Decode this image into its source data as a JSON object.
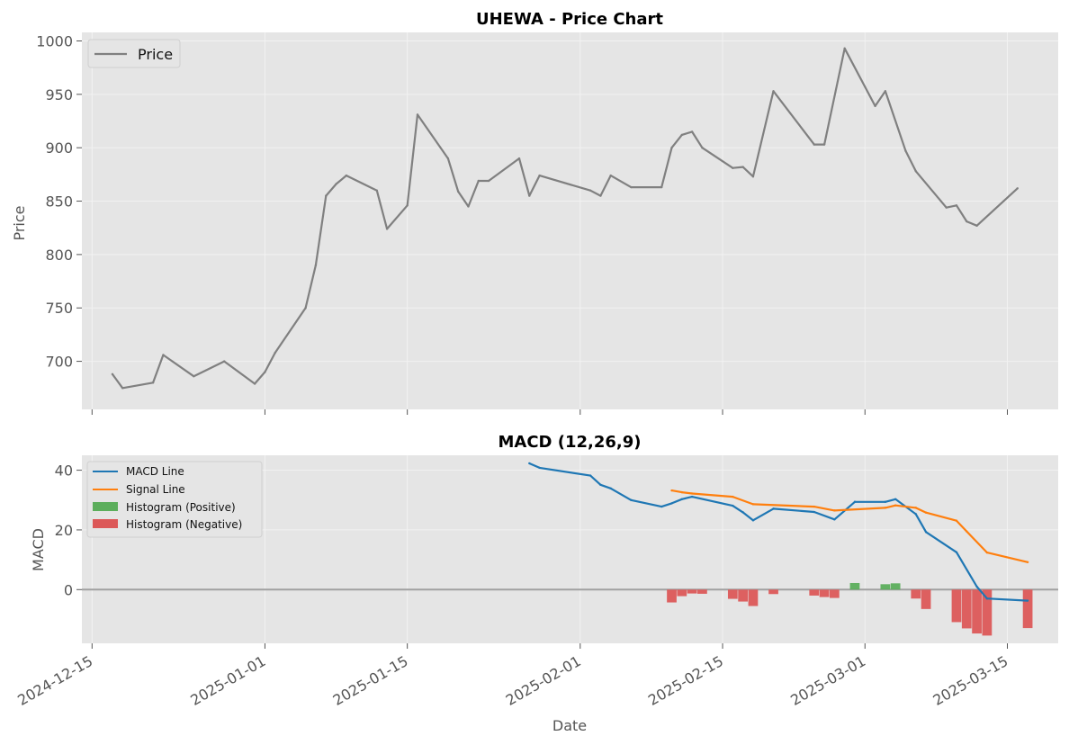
{
  "chart_data": [
    {
      "type": "line",
      "title": "UHEWA - Price Chart",
      "xlabel": "",
      "ylabel": "Price",
      "ylim": [
        655,
        1008
      ],
      "yticks": [
        700,
        750,
        800,
        850,
        900,
        950,
        1000
      ],
      "ytick_labels": [
        "700",
        "750",
        "800",
        "850",
        "900",
        "950",
        "1000"
      ],
      "xlim": [
        "2024-12-14",
        "2025-03-20"
      ],
      "grid": true,
      "legend_position": "top-left",
      "series": [
        {
          "name": "Price",
          "color": "#808080",
          "x": [
            "2024-12-17",
            "2024-12-18",
            "2024-12-21",
            "2024-12-22",
            "2024-12-25",
            "2024-12-28",
            "2024-12-31",
            "2025-01-01",
            "2025-01-02",
            "2025-01-05",
            "2025-01-06",
            "2025-01-07",
            "2025-01-08",
            "2025-01-09",
            "2025-01-12",
            "2025-01-13",
            "2025-01-15",
            "2025-01-16",
            "2025-01-19",
            "2025-01-20",
            "2025-01-21",
            "2025-01-22",
            "2025-01-23",
            "2025-01-26",
            "2025-01-27",
            "2025-01-28",
            "2025-02-02",
            "2025-02-03",
            "2025-02-04",
            "2025-02-06",
            "2025-02-09",
            "2025-02-10",
            "2025-02-11",
            "2025-02-12",
            "2025-02-13",
            "2025-02-16",
            "2025-02-17",
            "2025-02-18",
            "2025-02-20",
            "2025-02-24",
            "2025-02-25",
            "2025-02-27",
            "2025-03-02",
            "2025-03-03",
            "2025-03-05",
            "2025-03-06",
            "2025-03-09",
            "2025-03-10",
            "2025-03-11",
            "2025-03-12",
            "2025-03-16"
          ],
          "values": [
            688,
            675,
            680,
            706,
            686,
            700,
            679,
            690,
            708,
            750,
            790,
            855,
            866,
            874,
            860,
            824,
            846,
            931,
            890,
            859,
            845,
            869,
            869,
            890,
            855,
            874,
            860,
            855,
            874,
            863,
            863,
            900,
            912,
            915,
            900,
            881,
            882,
            873,
            953,
            903,
            903,
            993,
            939,
            953,
            897,
            878,
            844,
            846,
            831,
            827,
            862
          ]
        }
      ]
    },
    {
      "type": "line",
      "title": "MACD (12,26,9)",
      "xlabel": "Date",
      "ylabel": "MACD",
      "ylim": [
        -18,
        45
      ],
      "yticks": [
        0,
        20,
        40
      ],
      "ytick_labels": [
        "0",
        "20",
        "40"
      ],
      "xlim": [
        "2024-12-14",
        "2025-03-20"
      ],
      "grid": true,
      "legend_position": "top-left",
      "zero_line": 0,
      "series": [
        {
          "name": "MACD Line",
          "color": "#1f77b4",
          "x": [
            "2025-01-27",
            "2025-01-28",
            "2025-02-02",
            "2025-02-03",
            "2025-02-04",
            "2025-02-06",
            "2025-02-09",
            "2025-02-10",
            "2025-02-11",
            "2025-02-12",
            "2025-02-16",
            "2025-02-17",
            "2025-02-18",
            "2025-02-20",
            "2025-02-24",
            "2025-02-26",
            "2025-02-28",
            "2025-03-03",
            "2025-03-04",
            "2025-03-06",
            "2025-03-07",
            "2025-03-10",
            "2025-03-12",
            "2025-03-13",
            "2025-03-17"
          ],
          "values": [
            42.3,
            40.8,
            38.2,
            35.1,
            33.9,
            30.0,
            27.8,
            28.9,
            30.3,
            31.1,
            28.1,
            25.9,
            23.2,
            27.1,
            26.0,
            23.5,
            29.4,
            29.4,
            30.3,
            25.3,
            19.3,
            12.5,
            1.0,
            -3.0,
            -3.7
          ]
        },
        {
          "name": "Signal Line",
          "color": "#ff7f0e",
          "x": [
            "2025-02-10",
            "2025-02-11",
            "2025-02-12",
            "2025-02-16",
            "2025-02-18",
            "2025-02-24",
            "2025-02-26",
            "2025-03-03",
            "2025-03-04",
            "2025-03-06",
            "2025-03-07",
            "2025-03-10",
            "2025-03-11",
            "2025-03-13",
            "2025-03-17"
          ],
          "values": [
            33.2,
            32.6,
            32.2,
            31.1,
            28.6,
            27.8,
            26.5,
            27.4,
            28.2,
            27.4,
            25.8,
            23.1,
            19.5,
            12.4,
            9.2
          ]
        },
        {
          "name": "Histogram (Positive)",
          "color": "#5cae5c",
          "type": "bar",
          "x": [
            "2025-02-28",
            "2025-03-03",
            "2025-03-04"
          ],
          "values": [
            2.2,
            1.8,
            2.1
          ]
        },
        {
          "name": "Histogram (Negative)",
          "color": "#dc5858",
          "type": "bar",
          "x": [
            "2025-02-10",
            "2025-02-11",
            "2025-02-12",
            "2025-02-13",
            "2025-02-16",
            "2025-02-17",
            "2025-02-18",
            "2025-02-20",
            "2025-02-24",
            "2025-02-25",
            "2025-02-26",
            "2025-03-06",
            "2025-03-07",
            "2025-03-10",
            "2025-03-11",
            "2025-03-12",
            "2025-03-13",
            "2025-03-17"
          ],
          "values": [
            -4.3,
            -2.2,
            -1.3,
            -1.4,
            -3.1,
            -4.0,
            -5.5,
            -1.5,
            -2.0,
            -2.5,
            -2.8,
            -3.0,
            -6.5,
            -10.9,
            -13.0,
            -14.7,
            -15.4,
            -12.9
          ]
        }
      ]
    }
  ],
  "x_axis": {
    "ticks": [
      "2024-12-15",
      "2025-01-01",
      "2025-01-15",
      "2025-02-01",
      "2025-02-15",
      "2025-03-01",
      "2025-03-15"
    ],
    "tick_labels": [
      "2024-12-15",
      "2025-01-01",
      "2025-01-15",
      "2025-02-01",
      "2025-02-15",
      "2025-03-01",
      "2025-03-15"
    ]
  },
  "colors": {
    "plot_background": "#e5e5e5",
    "grid": "#f2f2f2",
    "zero_line": "#a0a0a0"
  }
}
